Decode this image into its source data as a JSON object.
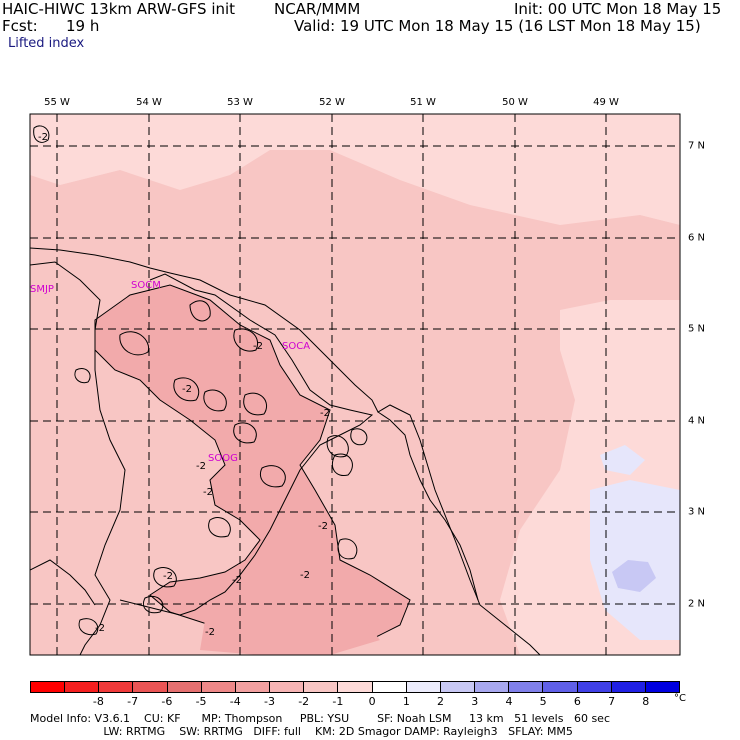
{
  "header": {
    "model": "HAIC-HIWC 13km ARW-GFS init",
    "org": "NCAR/MMM",
    "init": "Init: 00 UTC Mon 18 May 15",
    "fcst_label": "Fcst:",
    "fcst_value": "19 h",
    "valid": "Valid: 19 UTC Mon 18 May 15 (16 LST Mon 18 May 15)",
    "field": "Lifted index"
  },
  "map": {
    "longitudes": [
      "55 W",
      "54 W",
      "53 W",
      "52 W",
      "51 W",
      "50 W",
      "49 W"
    ],
    "latitudes": [
      "7 N",
      "6 N",
      "5 N",
      "4 N",
      "3 N",
      "2 N"
    ],
    "stations": [
      "SMJP",
      "SOCM",
      "SOCA",
      "SOOG"
    ],
    "contour_labels": [
      "-2",
      "-2",
      "-2",
      "-2",
      "-2",
      "-2",
      "-2",
      "-2",
      "-2",
      "-2",
      "-2",
      "-2"
    ],
    "fill_colors": {
      "light_pink": "#fddad8",
      "pink": "#f8c6c4",
      "rose": "#f2aaab",
      "pale_blue": "#e6e6fb",
      "blue": "#c8c8f4"
    }
  },
  "colorbar": {
    "colors": [
      "#ff0000",
      "#f51f1f",
      "#f03a3a",
      "#ea5555",
      "#e57070",
      "#ee8888",
      "#f2a0a0",
      "#f6b4b4",
      "#f8c6c4",
      "#fddad8",
      "#ffffff",
      "#ececfc",
      "#c8c8f4",
      "#a8a8ef",
      "#8080ea",
      "#6060e8",
      "#4040e6",
      "#2020e4",
      "#0000e0"
    ],
    "ticks": [
      "-8",
      "-7",
      "-6",
      "-5",
      "-4",
      "-3",
      "-2",
      "-1",
      "0",
      "1",
      "2",
      "3",
      "4",
      "5",
      "6",
      "7",
      "8"
    ],
    "unit": "°C"
  },
  "model_info": {
    "line1": "Model Info: V3.6.1    CU: KF      MP: Thompson     PBL: YSU        SF: Noah LSM     13 km   51 levels   60 sec",
    "line2": "                     LW: RRTMG    SW: RRTMG   DIFF: full    KM: 2D Smagor DAMP: Rayleigh3   SFLAY: MM5"
  }
}
